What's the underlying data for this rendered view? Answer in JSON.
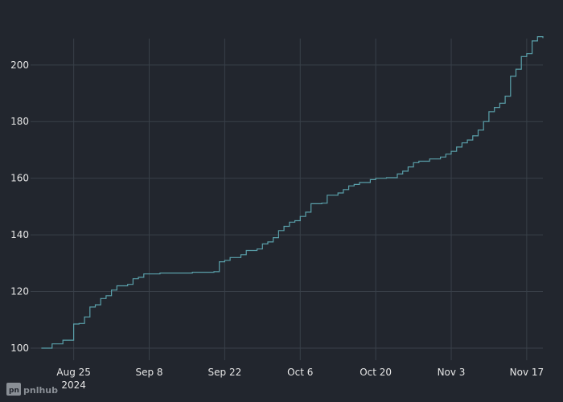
{
  "watermark": {
    "text": "pnlhub"
  },
  "chart_data": {
    "type": "line",
    "title": "",
    "xlabel": "",
    "ylabel": "",
    "grid": true,
    "legend": "none",
    "x_range": [
      "2024-08-17",
      "2024-11-20"
    ],
    "ylim": [
      98,
      215
    ],
    "x_ticks": [
      {
        "date": "2024-08-25",
        "label": "Aug 25",
        "sublabel": "2024"
      },
      {
        "date": "2024-09-08",
        "label": "Sep 8",
        "sublabel": ""
      },
      {
        "date": "2024-09-22",
        "label": "Sep 22",
        "sublabel": ""
      },
      {
        "date": "2024-10-06",
        "label": "Oct 6",
        "sublabel": ""
      },
      {
        "date": "2024-10-20",
        "label": "Oct 20",
        "sublabel": ""
      },
      {
        "date": "2024-11-03",
        "label": "Nov 3",
        "sublabel": ""
      },
      {
        "date": "2024-11-17",
        "label": "Nov 17",
        "sublabel": ""
      }
    ],
    "y_ticks": [
      100,
      120,
      140,
      160,
      180,
      200
    ],
    "series": [
      {
        "color": "#5aa0aa",
        "step": true,
        "points": [
          [
            "2024-08-19",
            100.0
          ],
          [
            "2024-08-21",
            101.5
          ],
          [
            "2024-08-23",
            102.8
          ],
          [
            "2024-08-25",
            108.5
          ],
          [
            "2024-08-26",
            108.7
          ],
          [
            "2024-08-27",
            111.0
          ],
          [
            "2024-08-28",
            114.5
          ],
          [
            "2024-08-29",
            115.3
          ],
          [
            "2024-08-30",
            117.5
          ],
          [
            "2024-08-31",
            118.5
          ],
          [
            "2024-09-01",
            120.5
          ],
          [
            "2024-09-02",
            122.0
          ],
          [
            "2024-09-04",
            122.5
          ],
          [
            "2024-09-05",
            124.5
          ],
          [
            "2024-09-06",
            125.0
          ],
          [
            "2024-09-07",
            126.2
          ],
          [
            "2024-09-10",
            126.5
          ],
          [
            "2024-09-14",
            126.5
          ],
          [
            "2024-09-16",
            126.8
          ],
          [
            "2024-09-20",
            127.0
          ],
          [
            "2024-09-21",
            130.5
          ],
          [
            "2024-09-22",
            131.0
          ],
          [
            "2024-09-23",
            132.0
          ],
          [
            "2024-09-25",
            133.0
          ],
          [
            "2024-09-26",
            134.5
          ],
          [
            "2024-09-28",
            135.0
          ],
          [
            "2024-09-29",
            136.8
          ],
          [
            "2024-09-30",
            137.5
          ],
          [
            "2024-10-01",
            139.0
          ],
          [
            "2024-10-02",
            141.5
          ],
          [
            "2024-10-03",
            143.0
          ],
          [
            "2024-10-04",
            144.5
          ],
          [
            "2024-10-05",
            145.0
          ],
          [
            "2024-10-06",
            146.5
          ],
          [
            "2024-10-07",
            148.0
          ],
          [
            "2024-10-08",
            151.0
          ],
          [
            "2024-10-10",
            151.2
          ],
          [
            "2024-10-11",
            154.0
          ],
          [
            "2024-10-13",
            154.8
          ],
          [
            "2024-10-14",
            156.0
          ],
          [
            "2024-10-15",
            157.3
          ],
          [
            "2024-10-16",
            157.8
          ],
          [
            "2024-10-17",
            158.5
          ],
          [
            "2024-10-19",
            159.5
          ],
          [
            "2024-10-20",
            160.0
          ],
          [
            "2024-10-22",
            160.2
          ],
          [
            "2024-10-24",
            161.5
          ],
          [
            "2024-10-25",
            162.5
          ],
          [
            "2024-10-26",
            164.0
          ],
          [
            "2024-10-27",
            165.5
          ],
          [
            "2024-10-28",
            166.0
          ],
          [
            "2024-10-30",
            166.8
          ],
          [
            "2024-11-01",
            167.5
          ],
          [
            "2024-11-02",
            168.5
          ],
          [
            "2024-11-03",
            169.5
          ],
          [
            "2024-11-04",
            171.0
          ],
          [
            "2024-11-05",
            172.5
          ],
          [
            "2024-11-06",
            173.5
          ],
          [
            "2024-11-07",
            175.0
          ],
          [
            "2024-11-08",
            177.0
          ],
          [
            "2024-11-09",
            180.0
          ],
          [
            "2024-11-10",
            183.5
          ],
          [
            "2024-11-11",
            185.0
          ],
          [
            "2024-11-12",
            186.5
          ],
          [
            "2024-11-13",
            189.0
          ],
          [
            "2024-11-14",
            196.0
          ],
          [
            "2024-11-15",
            198.5
          ],
          [
            "2024-11-16",
            203.0
          ],
          [
            "2024-11-17",
            204.0
          ],
          [
            "2024-11-18",
            208.5
          ],
          [
            "2024-11-19",
            210.0
          ],
          [
            "2024-11-20",
            209.5
          ]
        ]
      }
    ]
  }
}
